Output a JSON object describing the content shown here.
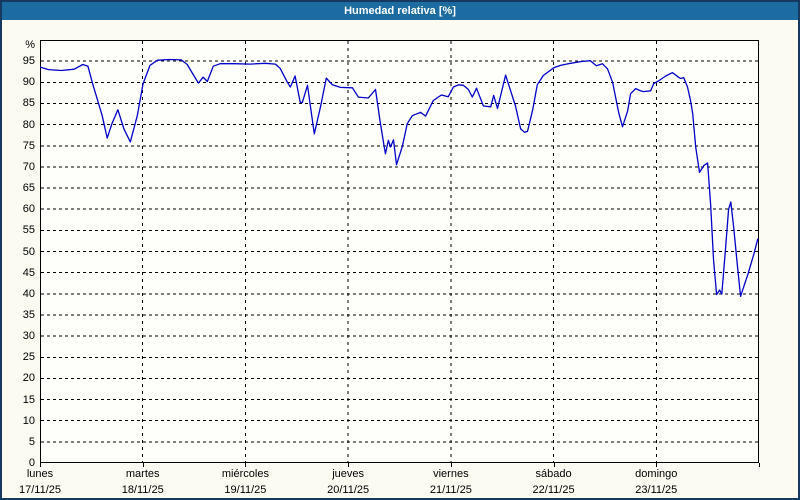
{
  "window": {
    "title": "Humedad relativa [%]"
  },
  "colors": {
    "header_bg": "#1c6ba1",
    "header_text": "#ffffff",
    "window_border": "#16395f",
    "page_bg": "#fbfbf2",
    "plot_bg": "#fefefa",
    "grid": "#000000",
    "line": "#0000c8",
    "axis_text": "#000000"
  },
  "chart_data": {
    "type": "line",
    "title": "Humedad relativa [%]",
    "xlabel": "",
    "ylabel": "%",
    "ylim": [
      0,
      100
    ],
    "yticks": [
      0,
      5,
      10,
      15,
      20,
      25,
      30,
      35,
      40,
      45,
      50,
      55,
      60,
      65,
      70,
      75,
      80,
      85,
      90,
      95
    ],
    "xlim_hours": [
      0,
      168
    ],
    "grid": "dashed",
    "legend_position": "none",
    "x_axis_days": [
      {
        "label": "lunes",
        "date": "17/11/25"
      },
      {
        "label": "martes",
        "date": "18/11/25"
      },
      {
        "label": "miércoles",
        "date": "19/11/25"
      },
      {
        "label": "jueves",
        "date": "20/11/25"
      },
      {
        "label": "viernes",
        "date": "21/11/25"
      },
      {
        "label": "sábado",
        "date": "22/11/25"
      },
      {
        "label": "domingo",
        "date": "23/11/25"
      }
    ],
    "series": [
      {
        "name": "Humedad relativa [%]",
        "color": "#0000c8",
        "points": [
          [
            0,
            93.6
          ],
          [
            2,
            93.0
          ],
          [
            5,
            92.8
          ],
          [
            8,
            93.1
          ],
          [
            10,
            94.2
          ],
          [
            11.2,
            93.8
          ],
          [
            12.4,
            89.3
          ],
          [
            14.5,
            82.2
          ],
          [
            15.7,
            76.8
          ],
          [
            16.8,
            80.2
          ],
          [
            18.2,
            83.5
          ],
          [
            19.6,
            79.0
          ],
          [
            21.1,
            75.9
          ],
          [
            22.7,
            82.0
          ],
          [
            24.1,
            89.7
          ],
          [
            25.7,
            94.0
          ],
          [
            27.4,
            95.2
          ],
          [
            30,
            95.4
          ],
          [
            33,
            95.3
          ],
          [
            34.4,
            94.2
          ],
          [
            36,
            91.5
          ],
          [
            37,
            89.8
          ],
          [
            38.1,
            91.2
          ],
          [
            39.1,
            90.2
          ],
          [
            40.5,
            93.8
          ],
          [
            42.1,
            94.4
          ],
          [
            45.6,
            94.4
          ],
          [
            49.1,
            94.3
          ],
          [
            52.6,
            94.5
          ],
          [
            55,
            94.3
          ],
          [
            56.1,
            93.3
          ],
          [
            57.8,
            90.0
          ],
          [
            58.5,
            88.9
          ],
          [
            59.6,
            91.5
          ],
          [
            60.8,
            85.3
          ],
          [
            61.3,
            85.2
          ],
          [
            62.5,
            89.3
          ],
          [
            64.1,
            77.8
          ],
          [
            65.5,
            84.0
          ],
          [
            66.9,
            91.0
          ],
          [
            68.3,
            89.4
          ],
          [
            70.2,
            88.8
          ],
          [
            73,
            88.7
          ],
          [
            74.4,
            86.5
          ],
          [
            76.7,
            86.3
          ],
          [
            78.4,
            88.3
          ],
          [
            79.5,
            80.6
          ],
          [
            80.7,
            73.1
          ],
          [
            81.4,
            76.3
          ],
          [
            81.9,
            74.7
          ],
          [
            82.6,
            76.4
          ],
          [
            83.3,
            70.5
          ],
          [
            84.7,
            75.0
          ],
          [
            85.8,
            80.2
          ],
          [
            87,
            82.1
          ],
          [
            88.9,
            82.9
          ],
          [
            90.1,
            82.0
          ],
          [
            91.9,
            85.7
          ],
          [
            93.8,
            87.0
          ],
          [
            95.4,
            86.6
          ],
          [
            96.6,
            88.9
          ],
          [
            97.8,
            89.4
          ],
          [
            98.9,
            89.3
          ],
          [
            100.1,
            88.3
          ],
          [
            101,
            86.5
          ],
          [
            102,
            88.6
          ],
          [
            103.6,
            84.4
          ],
          [
            105.3,
            84.2
          ],
          [
            106,
            86.9
          ],
          [
            106.9,
            83.8
          ],
          [
            108.8,
            91.7
          ],
          [
            111.1,
            84.4
          ],
          [
            112.3,
            79.0
          ],
          [
            113.2,
            78.2
          ],
          [
            113.9,
            78.4
          ],
          [
            115.1,
            83.4
          ],
          [
            116.2,
            89.4
          ],
          [
            117.6,
            91.6
          ],
          [
            120,
            93.4
          ],
          [
            121.6,
            94.0
          ],
          [
            124,
            94.5
          ],
          [
            126.3,
            94.9
          ],
          [
            128.6,
            95.1
          ],
          [
            130,
            93.9
          ],
          [
            131.4,
            94.4
          ],
          [
            132.6,
            93.2
          ],
          [
            133.8,
            90.0
          ],
          [
            135.2,
            82.9
          ],
          [
            136.1,
            79.5
          ],
          [
            137.3,
            83.2
          ],
          [
            138,
            87.3
          ],
          [
            139.2,
            88.5
          ],
          [
            140.3,
            88.0
          ],
          [
            141,
            87.8
          ],
          [
            142.7,
            88.0
          ],
          [
            143.4,
            89.7
          ],
          [
            144.5,
            90.3
          ],
          [
            146.2,
            91.5
          ],
          [
            147.8,
            92.3
          ],
          [
            149.2,
            91.2
          ],
          [
            149.7,
            90.9
          ],
          [
            150.4,
            91.1
          ],
          [
            151.3,
            88.9
          ],
          [
            152,
            85.7
          ],
          [
            152.5,
            82.6
          ],
          [
            153.2,
            74.7
          ],
          [
            154.1,
            68.7
          ],
          [
            155.1,
            70.3
          ],
          [
            156,
            70.9
          ],
          [
            156.7,
            61.2
          ],
          [
            157.4,
            47.8
          ],
          [
            158.1,
            39.8
          ],
          [
            158.8,
            40.9
          ],
          [
            159.3,
            39.9
          ],
          [
            160.2,
            50.9
          ],
          [
            160.9,
            60.0
          ],
          [
            161.4,
            61.7
          ],
          [
            162.1,
            55.7
          ],
          [
            163,
            46.2
          ],
          [
            163.7,
            39.4
          ],
          [
            164.7,
            42.5
          ],
          [
            165.4,
            44.6
          ],
          [
            166.8,
            49.4
          ],
          [
            167.7,
            52.9
          ]
        ]
      }
    ]
  }
}
